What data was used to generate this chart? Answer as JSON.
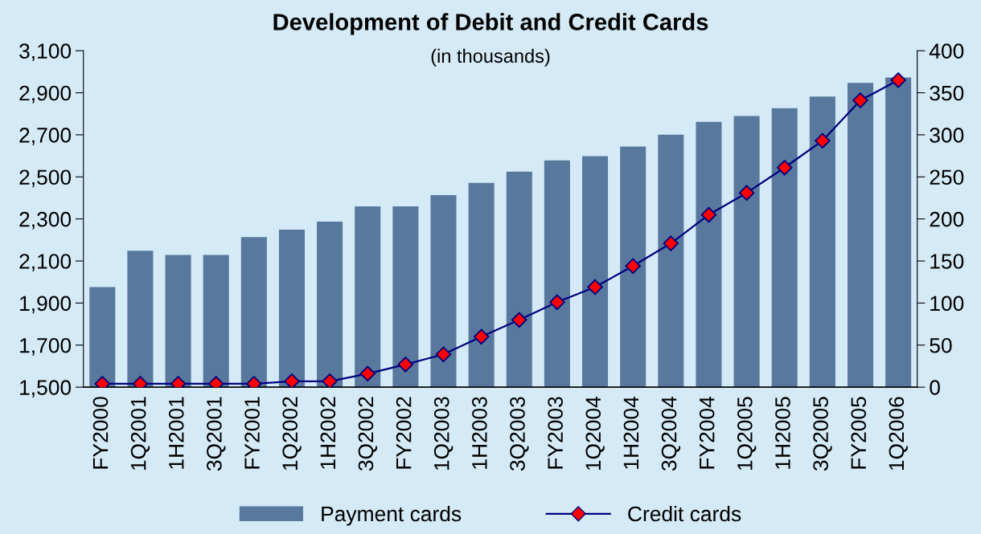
{
  "chart_data": {
    "type": "bar",
    "title": "Development of Debit and Credit Cards",
    "subtitle": "(in thousands)",
    "categories": [
      "FY2000",
      "1Q2001",
      "1H2001",
      "3Q2001",
      "FY2001",
      "1Q2002",
      "1H2002",
      "3Q2002",
      "FY2002",
      "1Q2003",
      "1H2003",
      "3Q2003",
      "FY2003",
      "1Q2004",
      "1H2004",
      "3Q2004",
      "FY2004",
      "1Q2005",
      "1H2005",
      "3Q2005",
      "FY2005",
      "1Q2006"
    ],
    "series": [
      {
        "name": "Payment cards",
        "color": "#58789e",
        "values": [
          1976,
          2149,
          2129,
          2129,
          2214,
          2249,
          2287,
          2360,
          2360,
          2413,
          2471,
          2525,
          2578,
          2598,
          2644,
          2701,
          2762,
          2789,
          2827,
          2882,
          2947,
          2973
        ]
      },
      {
        "name": "Credit cards",
        "type": "line",
        "axis": "y2",
        "color": "#000080",
        "marker": "diamond",
        "values": [
          4,
          4,
          4,
          4,
          4,
          7,
          7,
          16,
          27,
          39,
          60,
          80,
          101,
          119,
          144,
          171,
          205,
          231,
          261,
          293,
          341,
          365
        ]
      }
    ],
    "ylim": [
      1500,
      3100
    ],
    "yticks": [
      {
        "value": 1500,
        "label": "1,500"
      },
      {
        "value": 1700,
        "label": "1,700"
      },
      {
        "value": 1900,
        "label": "1,900"
      },
      {
        "value": 2100,
        "label": "2,100"
      },
      {
        "value": 2300,
        "label": "2,300"
      },
      {
        "value": 2500,
        "label": "2,500"
      },
      {
        "value": 2700,
        "label": "2,700"
      },
      {
        "value": 2900,
        "label": "2,900"
      },
      {
        "value": 3100,
        "label": "3,100"
      }
    ],
    "y2lim": [
      0,
      400
    ],
    "y2ticks": [
      0,
      50,
      100,
      150,
      200,
      250,
      300,
      350,
      400
    ],
    "grid": false,
    "legend": "bottom"
  }
}
